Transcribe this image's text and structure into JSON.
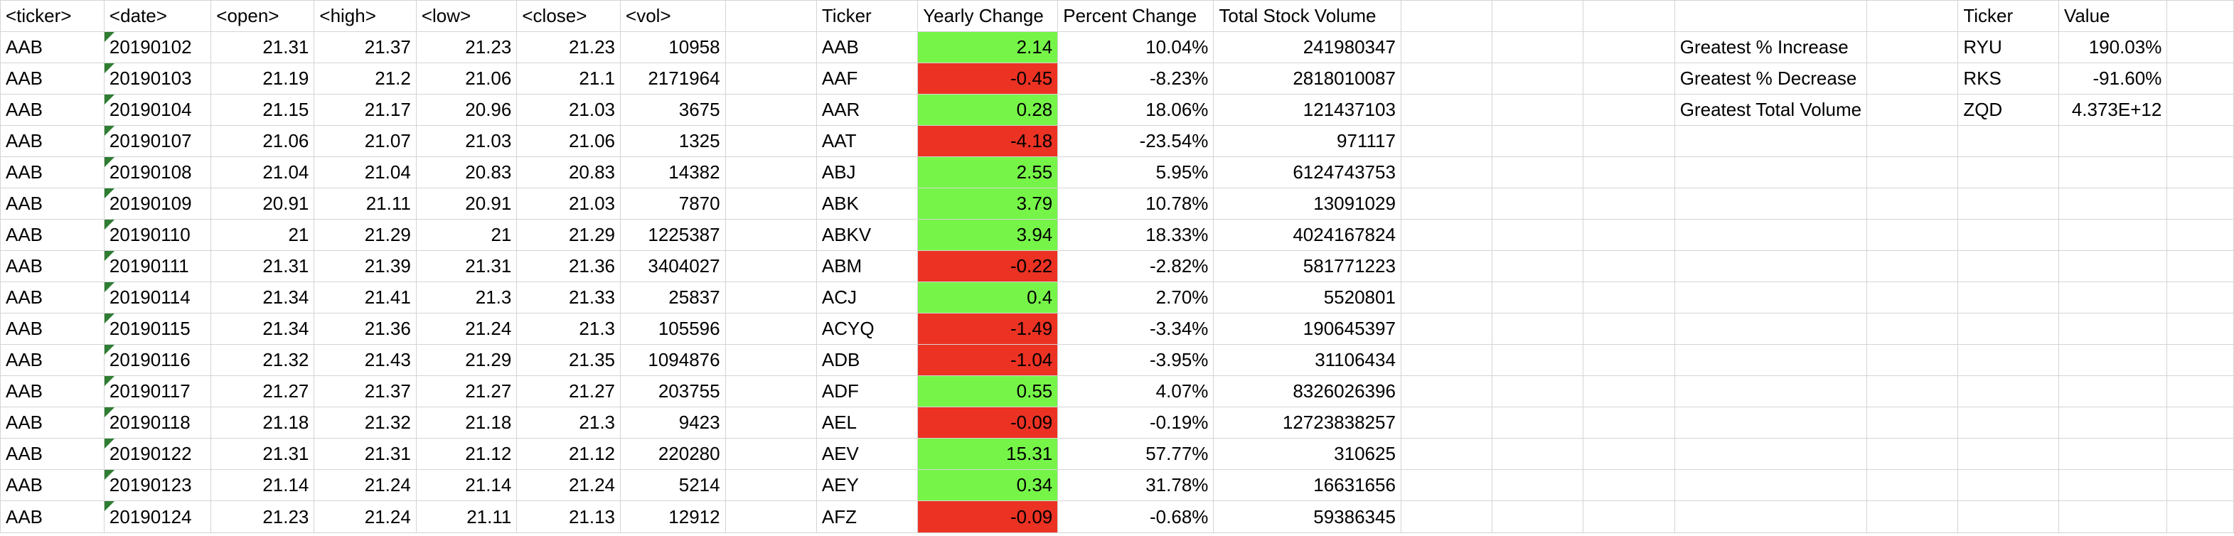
{
  "headers": {
    "ticker": "<ticker>",
    "date": "<date>",
    "open": "<open>",
    "high": "<high>",
    "low": "<low>",
    "close": "<close>",
    "vol": "<vol>",
    "summary_ticker": "Ticker",
    "yearly_change": "Yearly Change",
    "percent_change": "Percent Change",
    "total_volume": "Total Stock Volume",
    "bonus_ticker": "Ticker",
    "bonus_value": "Value"
  },
  "rows": [
    {
      "ticker": "AAB",
      "date": "20190102",
      "open": "21.31",
      "high": "21.37",
      "low": "21.23",
      "close": "21.23",
      "vol": "10958",
      "s_ticker": "AAB",
      "yearly_change": "2.14",
      "percent_change": "10.04%",
      "total_volume": "241980347",
      "positive": true
    },
    {
      "ticker": "AAB",
      "date": "20190103",
      "open": "21.19",
      "high": "21.2",
      "low": "21.06",
      "close": "21.1",
      "vol": "2171964",
      "s_ticker": "AAF",
      "yearly_change": "-0.45",
      "percent_change": "-8.23%",
      "total_volume": "2818010087",
      "positive": false
    },
    {
      "ticker": "AAB",
      "date": "20190104",
      "open": "21.15",
      "high": "21.17",
      "low": "20.96",
      "close": "21.03",
      "vol": "3675",
      "s_ticker": "AAR",
      "yearly_change": "0.28",
      "percent_change": "18.06%",
      "total_volume": "121437103",
      "positive": true
    },
    {
      "ticker": "AAB",
      "date": "20190107",
      "open": "21.06",
      "high": "21.07",
      "low": "21.03",
      "close": "21.06",
      "vol": "1325",
      "s_ticker": "AAT",
      "yearly_change": "-4.18",
      "percent_change": "-23.54%",
      "total_volume": "971117",
      "positive": false
    },
    {
      "ticker": "AAB",
      "date": "20190108",
      "open": "21.04",
      "high": "21.04",
      "low": "20.83",
      "close": "20.83",
      "vol": "14382",
      "s_ticker": "ABJ",
      "yearly_change": "2.55",
      "percent_change": "5.95%",
      "total_volume": "6124743753",
      "positive": true
    },
    {
      "ticker": "AAB",
      "date": "20190109",
      "open": "20.91",
      "high": "21.11",
      "low": "20.91",
      "close": "21.03",
      "vol": "7870",
      "s_ticker": "ABK",
      "yearly_change": "3.79",
      "percent_change": "10.78%",
      "total_volume": "13091029",
      "positive": true
    },
    {
      "ticker": "AAB",
      "date": "20190110",
      "open": "21",
      "high": "21.29",
      "low": "21",
      "close": "21.29",
      "vol": "1225387",
      "s_ticker": "ABKV",
      "yearly_change": "3.94",
      "percent_change": "18.33%",
      "total_volume": "4024167824",
      "positive": true
    },
    {
      "ticker": "AAB",
      "date": "20190111",
      "open": "21.31",
      "high": "21.39",
      "low": "21.31",
      "close": "21.36",
      "vol": "3404027",
      "s_ticker": "ABM",
      "yearly_change": "-0.22",
      "percent_change": "-2.82%",
      "total_volume": "581771223",
      "positive": false
    },
    {
      "ticker": "AAB",
      "date": "20190114",
      "open": "21.34",
      "high": "21.41",
      "low": "21.3",
      "close": "21.33",
      "vol": "25837",
      "s_ticker": "ACJ",
      "yearly_change": "0.4",
      "percent_change": "2.70%",
      "total_volume": "5520801",
      "positive": true
    },
    {
      "ticker": "AAB",
      "date": "20190115",
      "open": "21.34",
      "high": "21.36",
      "low": "21.24",
      "close": "21.3",
      "vol": "105596",
      "s_ticker": "ACYQ",
      "yearly_change": "-1.49",
      "percent_change": "-3.34%",
      "total_volume": "190645397",
      "positive": false
    },
    {
      "ticker": "AAB",
      "date": "20190116",
      "open": "21.32",
      "high": "21.43",
      "low": "21.29",
      "close": "21.35",
      "vol": "1094876",
      "s_ticker": "ADB",
      "yearly_change": "-1.04",
      "percent_change": "-3.95%",
      "total_volume": "31106434",
      "positive": false
    },
    {
      "ticker": "AAB",
      "date": "20190117",
      "open": "21.27",
      "high": "21.37",
      "low": "21.27",
      "close": "21.27",
      "vol": "203755",
      "s_ticker": "ADF",
      "yearly_change": "0.55",
      "percent_change": "4.07%",
      "total_volume": "8326026396",
      "positive": true
    },
    {
      "ticker": "AAB",
      "date": "20190118",
      "open": "21.18",
      "high": "21.32",
      "low": "21.18",
      "close": "21.3",
      "vol": "9423",
      "s_ticker": "AEL",
      "yearly_change": "-0.09",
      "percent_change": "-0.19%",
      "total_volume": "12723838257",
      "positive": false
    },
    {
      "ticker": "AAB",
      "date": "20190122",
      "open": "21.31",
      "high": "21.31",
      "low": "21.12",
      "close": "21.12",
      "vol": "220280",
      "s_ticker": "AEV",
      "yearly_change": "15.31",
      "percent_change": "57.77%",
      "total_volume": "310625",
      "positive": true
    },
    {
      "ticker": "AAB",
      "date": "20190123",
      "open": "21.14",
      "high": "21.24",
      "low": "21.14",
      "close": "21.24",
      "vol": "5214",
      "s_ticker": "AEY",
      "yearly_change": "0.34",
      "percent_change": "31.78%",
      "total_volume": "16631656",
      "positive": true
    },
    {
      "ticker": "AAB",
      "date": "20190124",
      "open": "21.23",
      "high": "21.24",
      "low": "21.11",
      "close": "21.13",
      "vol": "12912",
      "s_ticker": "AFZ",
      "yearly_change": "-0.09",
      "percent_change": "-0.68%",
      "total_volume": "59386345",
      "positive": false
    }
  ],
  "bonus": [
    {
      "label": "Greatest % Increase",
      "ticker": "RYU",
      "value": "190.03%"
    },
    {
      "label": "Greatest % Decrease",
      "ticker": "RKS",
      "value": "-91.60%"
    },
    {
      "label": "Greatest Total Volume",
      "ticker": "ZQD",
      "value": "4.373E+12"
    }
  ],
  "colors": {
    "positive": "#76f548",
    "negative": "#eb3223",
    "grid": "#d4d4d4"
  }
}
